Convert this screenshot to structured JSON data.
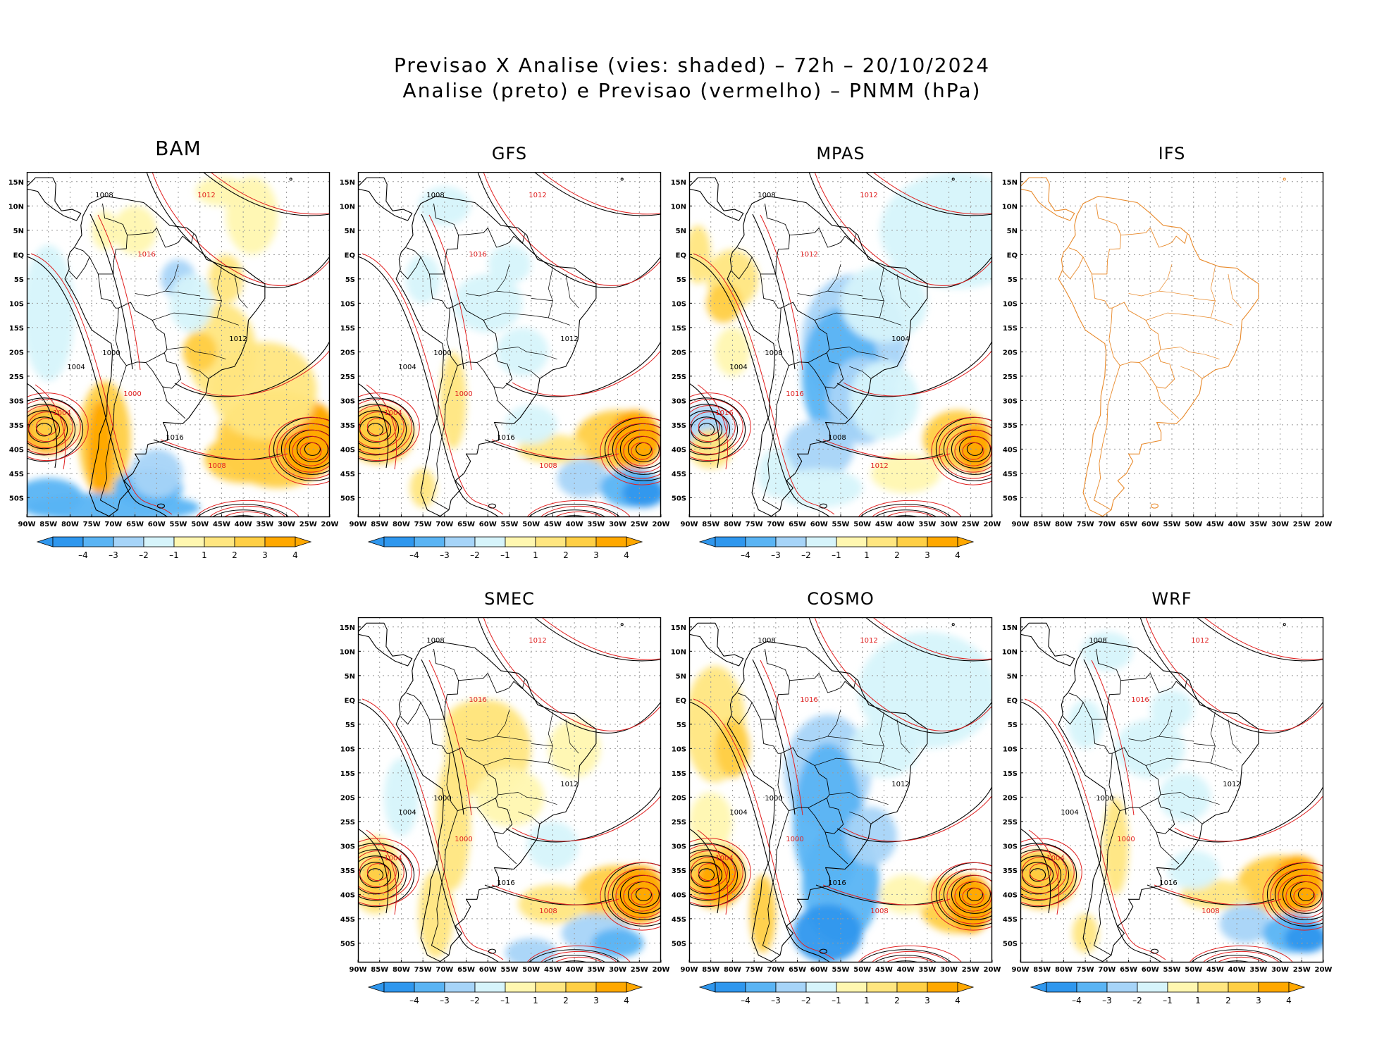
{
  "title": {
    "line1": "Previsao X Analise (vies: shaded) – 72h – 20/10/2024",
    "line2": "Analise (preto) e Previsao (vermelho) – PNMM (hPa)"
  },
  "colors": {
    "neg4": "#2f97ee",
    "neg3": "#5ab4f4",
    "neg2": "#a6d4f8",
    "neg1": "#d6f4fb",
    "zero": "#ffffff",
    "pos1": "#fff7b0",
    "pos2": "#ffe680",
    "pos3": "#ffcf45",
    "pos4": "#ffa800",
    "analysis": "#000000",
    "forecast": "#e02020",
    "ifs_outline": "#e8892a"
  },
  "axes": {
    "lat_labels": [
      "15N",
      "10N",
      "5N",
      "EQ",
      "5S",
      "10S",
      "15S",
      "20S",
      "25S",
      "30S",
      "35S",
      "40S",
      "45S",
      "50S"
    ],
    "lon_labels": [
      "90W",
      "85W",
      "80W",
      "75W",
      "70W",
      "65W",
      "60W",
      "55W",
      "50W",
      "45W",
      "40W",
      "35W",
      "30W",
      "25W",
      "20W"
    ]
  },
  "colorbar": {
    "labels": [
      "–4",
      "–3",
      "–2",
      "–1",
      "1",
      "2",
      "3",
      "4"
    ]
  },
  "panels": [
    {
      "name": "BAM",
      "bias": "warm-south",
      "contours": [
        "1008",
        "1012",
        "1004",
        "1000",
        "1016"
      ]
    },
    {
      "name": "GFS",
      "bias": "mixed",
      "contours": [
        "1008",
        "1012",
        "1004",
        "1000",
        "1016"
      ]
    },
    {
      "name": "MPAS",
      "bias": "cool",
      "contours": [
        "1008",
        "1012",
        "1004",
        "1016"
      ]
    },
    {
      "name": "IFS",
      "bias": "none",
      "contours": []
    },
    {
      "name": "SMEC",
      "bias": "warm-continent",
      "contours": [
        "1008",
        "1012",
        "1004",
        "1000",
        "1016"
      ]
    },
    {
      "name": "COSMO",
      "bias": "cool-strong",
      "contours": [
        "1008",
        "1012",
        "1004",
        "1000",
        "1016"
      ]
    },
    {
      "name": "WRF",
      "bias": "mixed",
      "contours": [
        "1008",
        "1012",
        "1004",
        "1000",
        "1016"
      ]
    }
  ]
}
